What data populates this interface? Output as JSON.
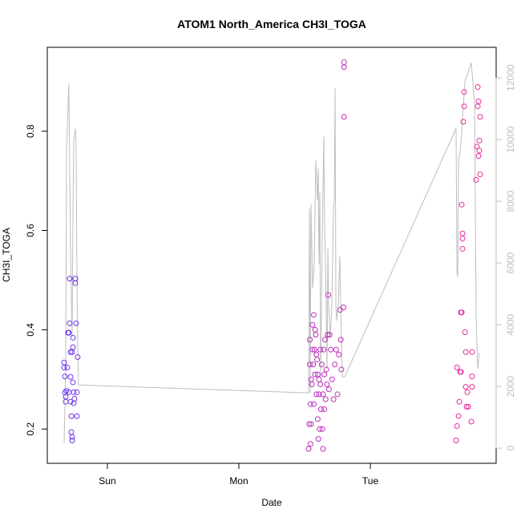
{
  "chart_data": {
    "type": "scatter",
    "title": "ATOM1 North_America CH3I_TOGA",
    "x_label": "Date",
    "y_label": "CH3I_TOGA",
    "xlim": [
      0.543,
      3.957
    ],
    "xticks": [
      {
        "value": 1,
        "label": "Sun"
      },
      {
        "value": 2,
        "label": "Mon"
      },
      {
        "value": 3,
        "label": "Tue"
      }
    ],
    "ylim": [
      0.131,
      0.969
    ],
    "yticks": [
      0.2,
      0.4,
      0.6,
      0.8
    ],
    "y2lim": [
      -490,
      12990
    ],
    "y2ticks": [
      0,
      2000,
      4000,
      6000,
      8000,
      10000,
      12000
    ],
    "y2_color": "#bebebe",
    "color_gradient": [
      "#6a35f0",
      "#f02a9a"
    ],
    "points": {
      "x": [
        0.671,
        0.671,
        0.677,
        0.677,
        0.683,
        0.683,
        0.689,
        0.695,
        0.707,
        0.707,
        0.713,
        0.713,
        0.72,
        0.72,
        0.726,
        0.726,
        0.732,
        0.732,
        0.738,
        0.738,
        0.738,
        0.744,
        0.75,
        0.756,
        0.756,
        0.762,
        0.768,
        0.768,
        0.774,
        0.732,
        0.72,
        0.701,
        0.744,
        2.53,
        2.535,
        2.54,
        2.54,
        2.545,
        2.545,
        2.55,
        2.55,
        2.555,
        2.56,
        2.56,
        2.565,
        2.57,
        2.57,
        2.575,
        2.58,
        2.58,
        2.585,
        2.59,
        2.59,
        2.595,
        2.6,
        2.6,
        2.605,
        2.61,
        2.61,
        2.615,
        2.62,
        2.62,
        2.625,
        2.63,
        2.635,
        2.64,
        2.64,
        2.645,
        2.65,
        2.65,
        2.655,
        2.66,
        2.665,
        2.67,
        2.675,
        2.68,
        2.685,
        2.69,
        2.7,
        2.71,
        2.72,
        2.73,
        2.74,
        2.75,
        2.76,
        2.77,
        2.775,
        2.78,
        2.795,
        2.8,
        2.8,
        2.8,
        3.652,
        3.659,
        3.659,
        3.671,
        3.677,
        3.683,
        3.689,
        3.689,
        3.695,
        3.695,
        3.701,
        3.701,
        3.701,
        3.707,
        3.713,
        3.713,
        3.72,
        3.726,
        3.726,
        3.732,
        3.738,
        3.744,
        3.768,
        3.774,
        3.774,
        3.774,
        3.805,
        3.811,
        3.817,
        3.817,
        3.823,
        3.823,
        3.829,
        3.835,
        3.835,
        3.829
      ],
      "values": [
        0.334,
        0.324,
        0.306,
        0.274,
        0.265,
        0.255,
        0.277,
        0.324,
        0.274,
        0.394,
        0.413,
        0.503,
        0.305,
        0.255,
        0.226,
        0.194,
        0.184,
        0.177,
        0.294,
        0.365,
        0.384,
        0.252,
        0.261,
        0.503,
        0.494,
        0.413,
        0.274,
        0.226,
        0.345,
        0.355,
        0.355,
        0.394,
        0.274,
        0.16,
        0.21,
        0.33,
        0.38,
        0.25,
        0.17,
        0.21,
        0.3,
        0.29,
        0.41,
        0.36,
        0.33,
        0.43,
        0.25,
        0.36,
        0.4,
        0.31,
        0.39,
        0.27,
        0.35,
        0.34,
        0.22,
        0.31,
        0.18,
        0.3,
        0.27,
        0.2,
        0.36,
        0.29,
        0.24,
        0.33,
        0.2,
        0.16,
        0.27,
        0.36,
        0.24,
        0.31,
        0.38,
        0.26,
        0.32,
        0.29,
        0.39,
        0.47,
        0.28,
        0.39,
        0.36,
        0.3,
        0.26,
        0.33,
        0.36,
        0.27,
        0.35,
        0.44,
        0.38,
        0.32,
        0.445,
        0.939,
        0.929,
        0.829,
        0.177,
        0.206,
        0.324,
        0.226,
        0.255,
        0.315,
        0.315,
        0.435,
        0.435,
        0.652,
        0.563,
        0.584,
        0.594,
        0.819,
        0.85,
        0.879,
        0.395,
        0.355,
        0.285,
        0.245,
        0.274,
        0.245,
        0.215,
        0.285,
        0.355,
        0.306,
        0.702,
        0.769,
        0.85,
        0.889,
        0.86,
        0.75,
        0.781,
        0.829,
        0.713,
        0.761
      ]
    },
    "line": {
      "axis": "y2",
      "color": "#bebebe",
      "x": [
        0.671,
        0.683,
        0.689,
        0.707,
        0.713,
        0.72,
        0.732,
        0.738,
        0.744,
        0.756,
        0.762,
        0.768,
        0.774,
        0.78,
        2.53,
        2.537,
        2.543,
        2.549,
        2.561,
        2.573,
        2.585,
        2.598,
        2.604,
        2.61,
        2.616,
        2.622,
        2.634,
        2.646,
        2.652,
        2.659,
        2.671,
        2.677,
        2.683,
        2.695,
        2.707,
        2.72,
        2.726,
        2.732,
        2.738,
        2.744,
        2.756,
        2.768,
        2.774,
        2.787,
        2.805,
        3.652,
        3.659,
        3.665,
        3.671,
        3.683,
        3.695,
        3.72,
        3.744,
        3.768,
        3.793,
        3.805,
        3.817,
        3.829
      ],
      "values": [
        180,
        2570,
        9580,
        11790,
        9330,
        6340,
        3610,
        7510,
        9970,
        10360,
        9840,
        5950,
        3610,
        2050,
        1790,
        7770,
        1790,
        7900,
        5170,
        5950,
        9320,
        8030,
        9060,
        5950,
        8290,
        2310,
        6730,
        10100,
        7250,
        5950,
        2570,
        6470,
        4650,
        3610,
        4650,
        7770,
        8030,
        11660,
        4650,
        4130,
        4650,
        6210,
        4650,
        2310,
        2310,
        10360,
        5690,
        5560,
        9320,
        9580,
        10230,
        11920,
        12180,
        12490,
        11140,
        4130,
        2570,
        3090
      ]
    }
  }
}
